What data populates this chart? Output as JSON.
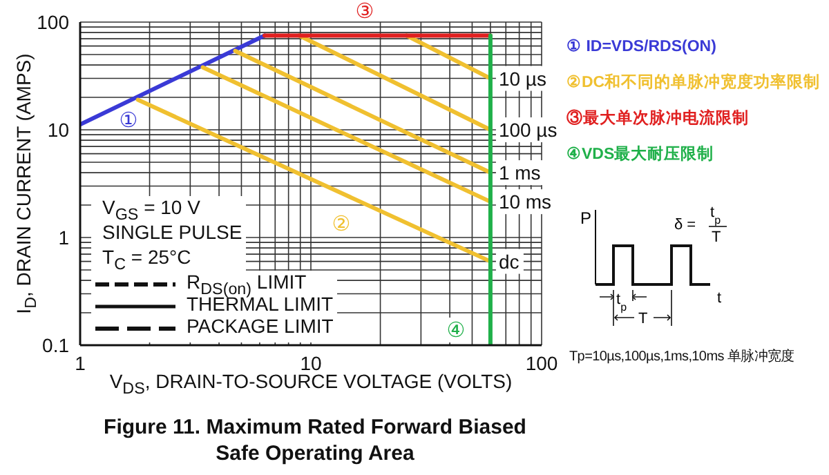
{
  "chart_data": {
    "type": "line",
    "title": "Figure 11. Maximum Rated Forward Biased Safe Operating Area",
    "xlabel": "V$_{DS}$, DRAIN-TO-SOURCE VOLTAGE (VOLTS)",
    "ylabel": "I$_{D}$, DRAIN CURRENT (AMPS)",
    "log": "xy",
    "grid": true,
    "legend": "right",
    "xlim": [
      1,
      100
    ],
    "ylim": [
      0.1,
      100
    ],
    "xticks": [
      1,
      {
        "value": 2,
        "label": null
      },
      {
        "value": 3,
        "label": null
      },
      {
        "value": 4,
        "label": null
      },
      {
        "value": 5,
        "label": null
      },
      {
        "value": 6,
        "label": null
      },
      {
        "value": 7,
        "label": null
      },
      {
        "value": 8,
        "label": null
      },
      {
        "value": 9,
        "label": null
      },
      10,
      {
        "value": 20,
        "label": null
      },
      {
        "value": 30,
        "label": null
      },
      {
        "value": 40,
        "label": null
      },
      {
        "value": 50,
        "label": null
      },
      {
        "value": 60,
        "label": null
      },
      {
        "value": 70,
        "label": null
      },
      {
        "value": 80,
        "label": null
      },
      {
        "value": 90,
        "label": null
      },
      100
    ],
    "yticks": [
      0.1,
      {
        "value": 0.2,
        "label": null
      },
      {
        "value": 0.3,
        "label": null
      },
      {
        "value": 0.4,
        "label": null
      },
      {
        "value": 0.5,
        "label": null
      },
      {
        "value": 0.6,
        "label": null
      },
      {
        "value": 0.7,
        "label": null
      },
      {
        "value": 0.8,
        "label": null
      },
      {
        "value": 0.9,
        "label": null
      },
      1,
      {
        "value": 2,
        "label": null
      },
      {
        "value": 3,
        "label": null
      },
      {
        "value": 4,
        "label": null
      },
      {
        "value": 5,
        "label": null
      },
      {
        "value": 6,
        "label": null
      },
      {
        "value": 7,
        "label": null
      },
      {
        "value": 8,
        "label": null
      },
      {
        "value": 9,
        "label": null
      },
      10,
      {
        "value": 20,
        "label": null
      },
      {
        "value": 30,
        "label": null
      },
      {
        "value": 40,
        "label": null
      },
      {
        "value": 50,
        "label": null
      },
      {
        "value": 60,
        "label": null
      },
      {
        "value": 70,
        "label": null
      },
      {
        "value": 80,
        "label": null
      },
      {
        "value": 90,
        "label": null
      },
      100
    ],
    "series": [
      {
        "name": "① ID=VDS/RDS(ON)",
        "color": "#3a3ad6",
        "x": [
          1,
          6.3
        ],
        "values": [
          11.2,
          75
        ]
      },
      {
        "name": "10 µs",
        "color": "#f0c030",
        "x": [
          26,
          60
        ],
        "values": [
          75,
          30
        ]
      },
      {
        "name": "100 µs",
        "color": "#f0c030",
        "x": [
          8.9,
          60
        ],
        "values": [
          75,
          10
        ]
      },
      {
        "name": "1 ms",
        "color": "#f0c030",
        "x": [
          4.7,
          60
        ],
        "values": [
          54,
          4
        ]
      },
      {
        "name": "10 ms",
        "color": "#f0c030",
        "x": [
          3.4,
          60
        ],
        "values": [
          38,
          2.15
        ]
      },
      {
        "name": "dc",
        "color": "#f0c030",
        "x": [
          1.78,
          60
        ],
        "values": [
          19,
          0.6
        ]
      },
      {
        "name": "③最大单次脉冲电流限制",
        "color": "#e02020",
        "x": [
          6.3,
          60
        ],
        "values": [
          75,
          75
        ]
      },
      {
        "name": "④VDS最大耐压限制",
        "color": "#20b04a",
        "x": [
          60,
          60
        ],
        "values": [
          75,
          0.1
        ]
      }
    ],
    "annotations": [
      "①",
      "②",
      "③",
      "④",
      "②DC和不同的单脉冲宽度功率限制",
      "V$_{GS}$ = 10 V",
      "SINGLE PULSE",
      "T$_{C}$ = 25°C",
      "R$_{DS(on)}$ LIMIT",
      "THERMAL LIMIT",
      "PACKAGE LIMIT",
      "P",
      "δ =",
      "t$_{p}$",
      "T",
      "t",
      "t$_{p}$",
      "T",
      "Tp=10µs,100µs,1ms,10ms 单脉冲宽度"
    ]
  }
}
